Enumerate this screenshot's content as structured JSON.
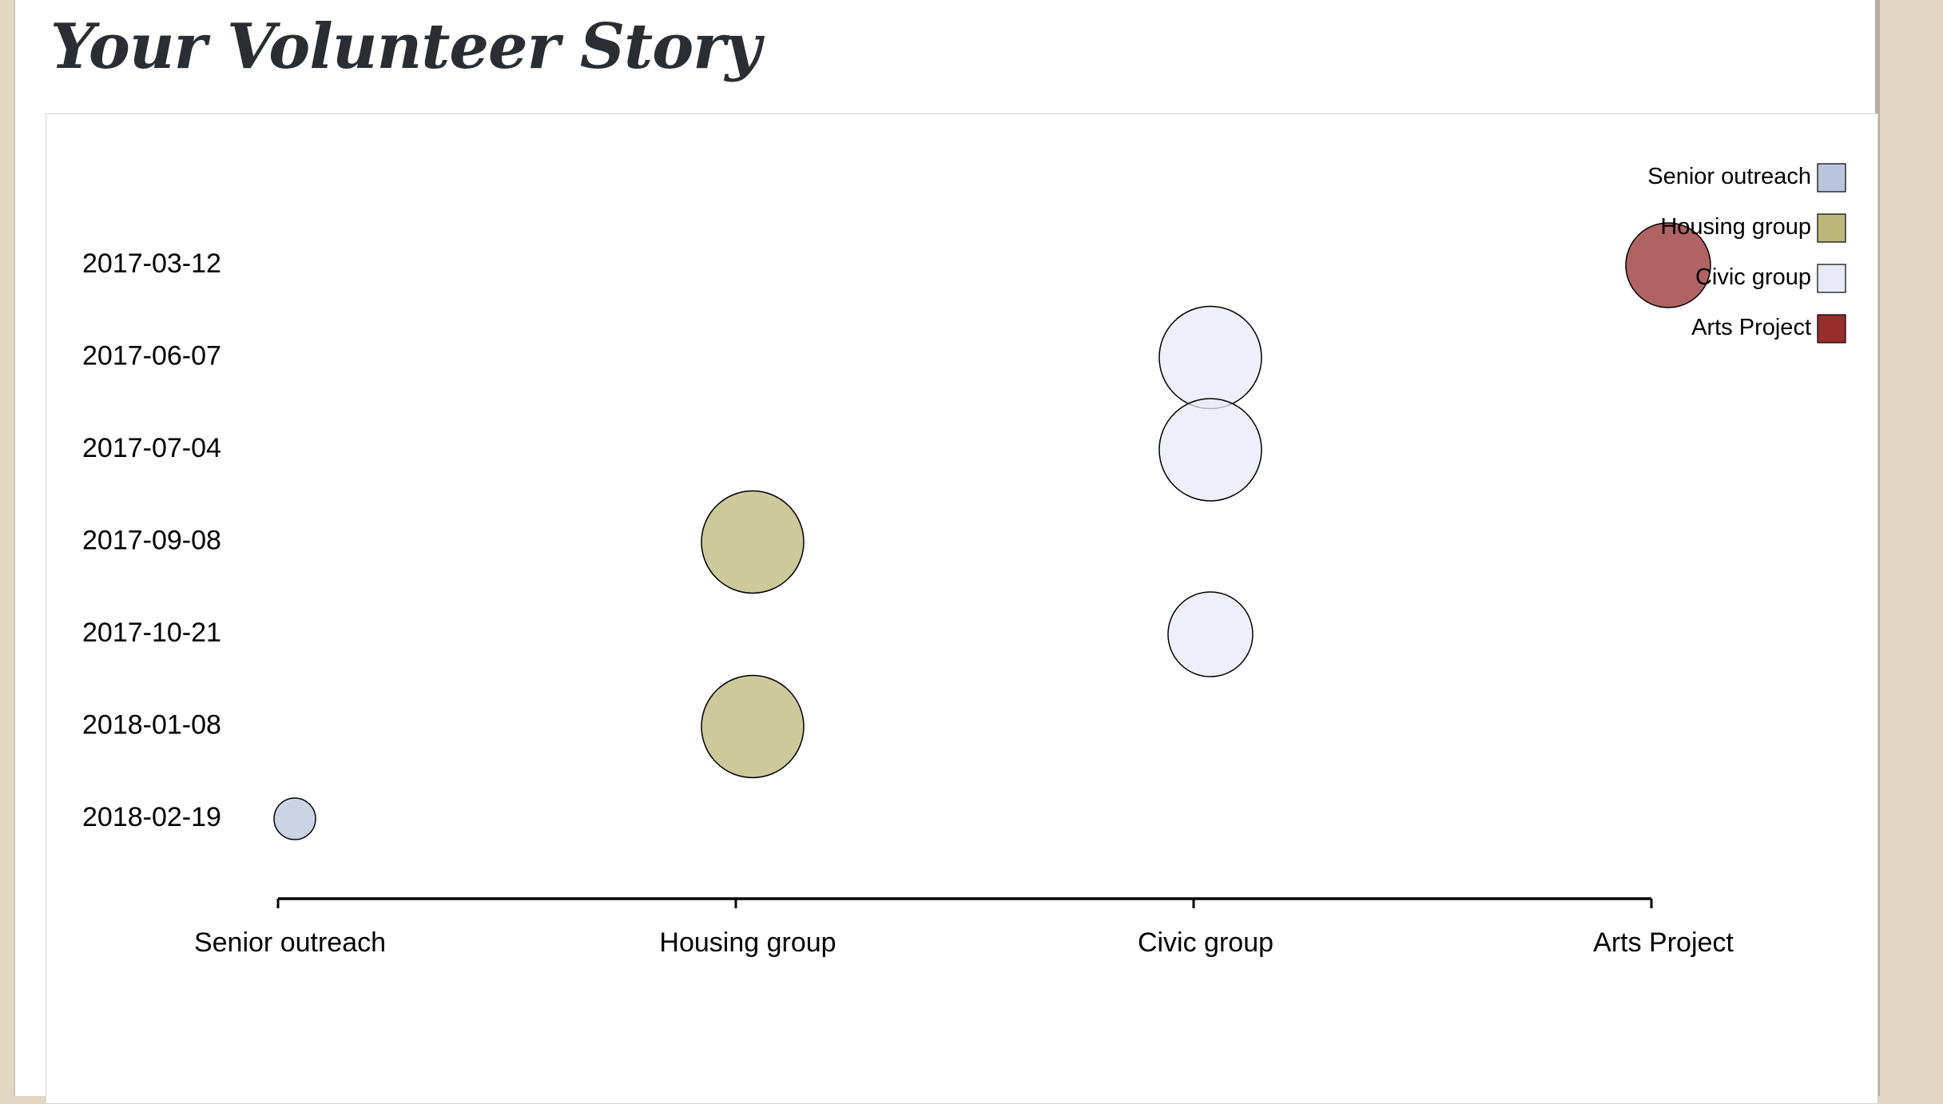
{
  "page": {
    "title": "Your Volunteer Story"
  },
  "chart_data": {
    "type": "scatter",
    "categories": [
      "Senior outreach",
      "Housing group",
      "Civic group",
      "Arts Project"
    ],
    "y_dates": [
      "2017-03-12",
      "2017-06-07",
      "2017-07-04",
      "2017-09-08",
      "2017-10-21",
      "2018-01-08",
      "2018-02-19"
    ],
    "points": [
      {
        "category": "Arts Project",
        "date": "2017-03-12",
        "size": 53
      },
      {
        "category": "Civic group",
        "date": "2017-06-07",
        "size": 64
      },
      {
        "category": "Civic group",
        "date": "2017-07-04",
        "size": 64
      },
      {
        "category": "Housing group",
        "date": "2017-09-08",
        "size": 64
      },
      {
        "category": "Civic group",
        "date": "2017-10-21",
        "size": 53
      },
      {
        "category": "Housing group",
        "date": "2018-01-08",
        "size": 64
      },
      {
        "category": "Senior outreach",
        "date": "2018-02-19",
        "size": 26
      }
    ],
    "legend": {
      "placement": "top-right",
      "items": [
        {
          "label": "Senior outreach",
          "color": "#b8c5dc"
        },
        {
          "label": "Housing group",
          "color": "#bbb77a"
        },
        {
          "label": "Civic group",
          "color": "#e8eaf8"
        },
        {
          "label": "Arts Project",
          "color": "#962f2d"
        }
      ]
    },
    "title": "",
    "xlabel": "",
    "ylabel": "",
    "grid": false
  }
}
